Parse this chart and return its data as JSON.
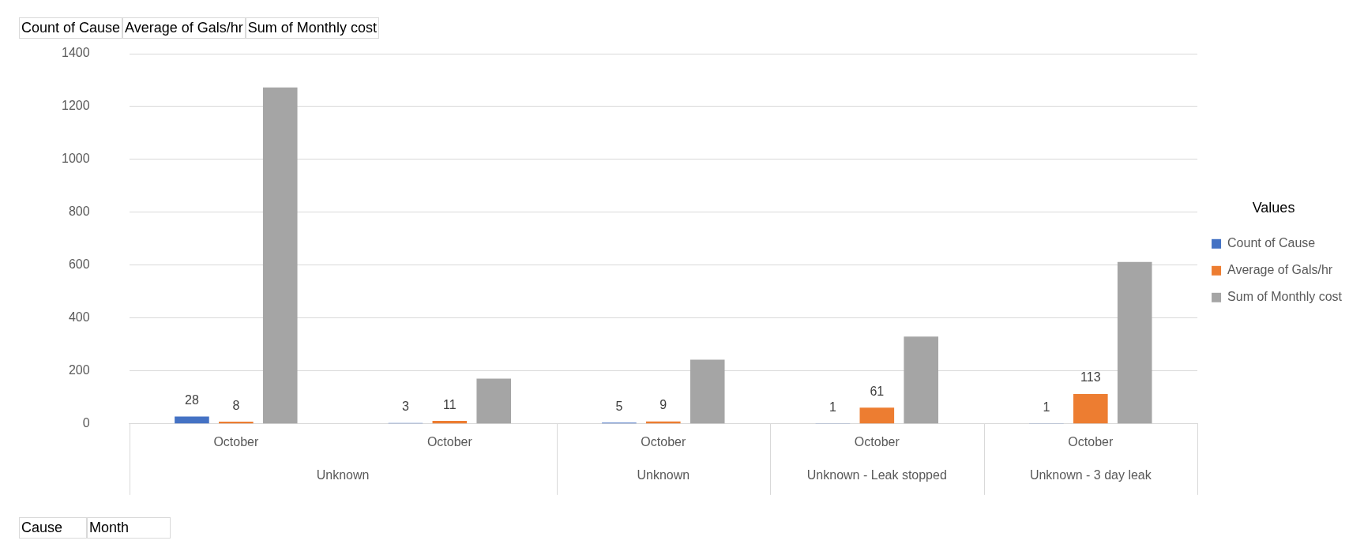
{
  "chart_data": {
    "type": "bar",
    "categories": [
      "October",
      "October",
      "October",
      "October",
      "October"
    ],
    "series": [
      {
        "name": "Count of Cause",
        "color": "#4472c4",
        "values": [
          28,
          3,
          5,
          1,
          1
        ],
        "value_labels": [
          "28",
          "3",
          "5",
          "1",
          "1"
        ]
      },
      {
        "name": "Average of Gals/hr",
        "color": "#ed7d31",
        "values": [
          8,
          11,
          9,
          61,
          113
        ],
        "value_labels": [
          "8",
          "11",
          "9",
          "61",
          "113"
        ]
      },
      {
        "name": "Sum of Monthly cost",
        "color": "#a5a5a5",
        "values": [
          1272,
          171,
          243,
          330,
          612
        ]
      }
    ],
    "ylim": [
      0,
      1400
    ],
    "yticks": [
      0,
      200,
      400,
      600,
      800,
      1000,
      1200,
      1400
    ],
    "grid": "y",
    "legend": "right",
    "legend_title": "Values",
    "annotations": [
      "Count of Cause",
      "Average of Gals/hr",
      "Sum of Monthly cost",
      "Unknown",
      "Unknown",
      "Unknown - Leak stopped",
      "Unknown - 3 day leak",
      "Cause",
      "Month"
    ]
  }
}
